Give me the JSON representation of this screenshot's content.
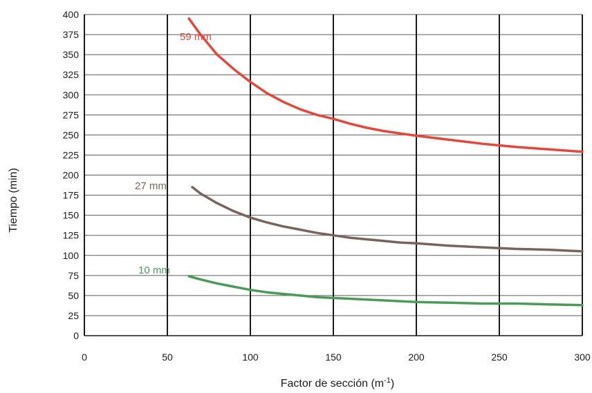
{
  "chart_data": {
    "type": "line",
    "xlabel": "Factor de sección (m",
    "xlabel_sup": "-1",
    "xlabel_close": ")",
    "ylabel": "Tiempo (min)",
    "xlim": [
      0,
      300
    ],
    "ylim": [
      0,
      400
    ],
    "x_ticks": [
      0,
      50,
      100,
      150,
      200,
      250,
      300
    ],
    "y_ticks": [
      0,
      25,
      50,
      75,
      100,
      125,
      150,
      175,
      200,
      225,
      250,
      275,
      300,
      325,
      350,
      375,
      400
    ],
    "grid": true,
    "series": [
      {
        "name": "59 mm",
        "color": "#e8453c",
        "x": [
          63,
          70,
          80,
          90,
          100,
          110,
          120,
          130,
          140,
          150,
          160,
          170,
          180,
          190,
          200,
          220,
          240,
          260,
          280,
          300
        ],
        "y": [
          395,
          375,
          350,
          332,
          316,
          302,
          291,
          282,
          275,
          270,
          264,
          259,
          255,
          252,
          249,
          244,
          239,
          235,
          232,
          229
        ]
      },
      {
        "name": "27 mm",
        "color": "#7a6358",
        "x": [
          65,
          70,
          80,
          90,
          100,
          110,
          120,
          130,
          140,
          150,
          160,
          170,
          180,
          190,
          200,
          220,
          240,
          260,
          280,
          300
        ],
        "y": [
          185,
          177,
          165,
          155,
          147,
          141,
          136,
          132,
          128,
          125,
          122,
          120,
          118,
          116,
          115,
          112,
          110,
          108,
          107,
          105
        ]
      },
      {
        "name": "10 mm",
        "color": "#4c9a5a",
        "x": [
          63,
          70,
          80,
          90,
          100,
          110,
          120,
          130,
          140,
          150,
          160,
          180,
          200,
          220,
          240,
          260,
          280,
          300
        ],
        "y": [
          74,
          70,
          65,
          61,
          57,
          54,
          52,
          50,
          48,
          47,
          46,
          44,
          42,
          41,
          40,
          40,
          39,
          38
        ]
      }
    ]
  }
}
